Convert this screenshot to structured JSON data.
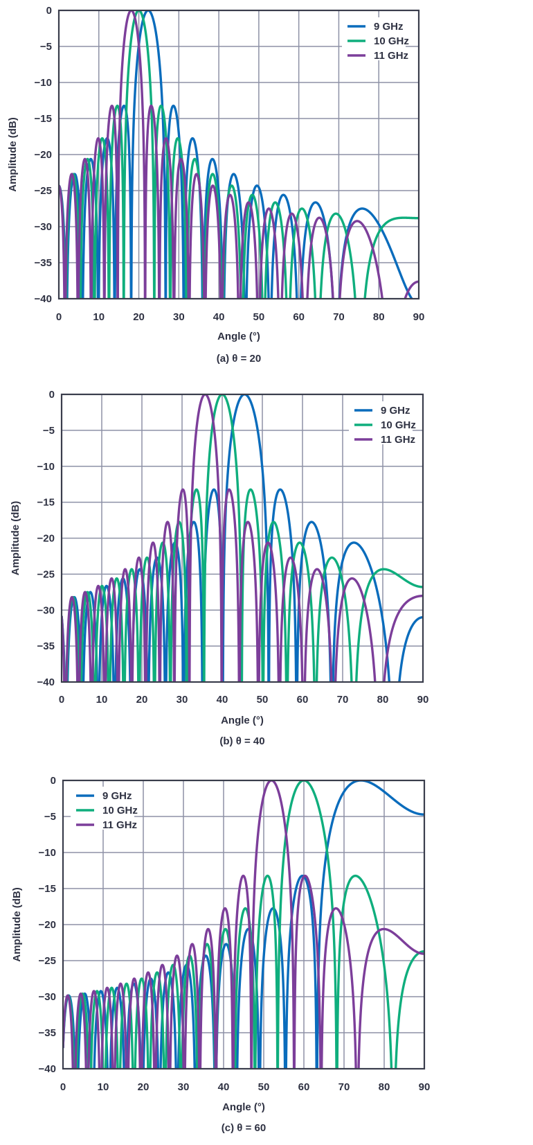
{
  "chart_data": [
    {
      "type": "line",
      "caption": "(a) θ = 20",
      "steering_angle_deg": 20,
      "xlabel": "Angle (°)",
      "ylabel": "Amplitude (dB)",
      "xlim": [
        0,
        90
      ],
      "ylim": [
        -40,
        0
      ],
      "xticks": [
        "0",
        "10",
        "20",
        "30",
        "40",
        "50",
        "60",
        "70",
        "80",
        "90"
      ],
      "yticks": [
        "0",
        "−5",
        "−10",
        "−15",
        "−20",
        "−25",
        "−30",
        "−35",
        "−40"
      ],
      "grid": true,
      "legend_position": "top-right",
      "series": [
        {
          "name": "9 GHz",
          "frequency_ghz": 9,
          "color": "#0a6cbc",
          "main_beam_deg": 22.3
        },
        {
          "name": "10 GHz",
          "frequency_ghz": 10,
          "color": "#0fae7d",
          "main_beam_deg": 20
        },
        {
          "name": "11 GHz",
          "frequency_ghz": 11,
          "color": "#7c3e9a",
          "main_beam_deg": 18.1
        }
      ]
    },
    {
      "type": "line",
      "caption": "(b) θ = 40",
      "steering_angle_deg": 40,
      "xlabel": "Angle (°)",
      "ylabel": "Amplitude (dB)",
      "xlim": [
        0,
        90
      ],
      "ylim": [
        -40,
        0
      ],
      "xticks": [
        "0",
        "10",
        "20",
        "30",
        "40",
        "50",
        "60",
        "70",
        "80",
        "90"
      ],
      "yticks": [
        "0",
        "−5",
        "−10",
        "−15",
        "−20",
        "−25",
        "−30",
        "−35",
        "−40"
      ],
      "grid": true,
      "legend_position": "top-right",
      "series": [
        {
          "name": "9 GHz",
          "frequency_ghz": 9,
          "color": "#0a6cbc",
          "main_beam_deg": 45.6
        },
        {
          "name": "10 GHz",
          "frequency_ghz": 10,
          "color": "#0fae7d",
          "main_beam_deg": 40
        },
        {
          "name": "11 GHz",
          "frequency_ghz": 11,
          "color": "#7c3e9a",
          "main_beam_deg": 35.8
        }
      ]
    },
    {
      "type": "line",
      "caption": "(c) θ = 60",
      "steering_angle_deg": 60,
      "xlabel": "Angle (°)",
      "ylabel": "Amplitude (dB)",
      "xlim": [
        0,
        90
      ],
      "ylim": [
        -40,
        0
      ],
      "xticks": [
        "0",
        "10",
        "20",
        "30",
        "40",
        "50",
        "60",
        "70",
        "80",
        "90"
      ],
      "yticks": [
        "0",
        "−5",
        "−10",
        "−15",
        "−20",
        "−25",
        "−30",
        "−35",
        "−40"
      ],
      "grid": true,
      "legend_position": "top-left",
      "series": [
        {
          "name": "9 GHz",
          "frequency_ghz": 9,
          "color": "#0a6cbc",
          "main_beam_deg": 74.2
        },
        {
          "name": "10 GHz",
          "frequency_ghz": 10,
          "color": "#0fae7d",
          "main_beam_deg": 60
        },
        {
          "name": "11 GHz",
          "frequency_ghz": 11,
          "color": "#7c3e9a",
          "main_beam_deg": 51.9
        }
      ]
    }
  ]
}
